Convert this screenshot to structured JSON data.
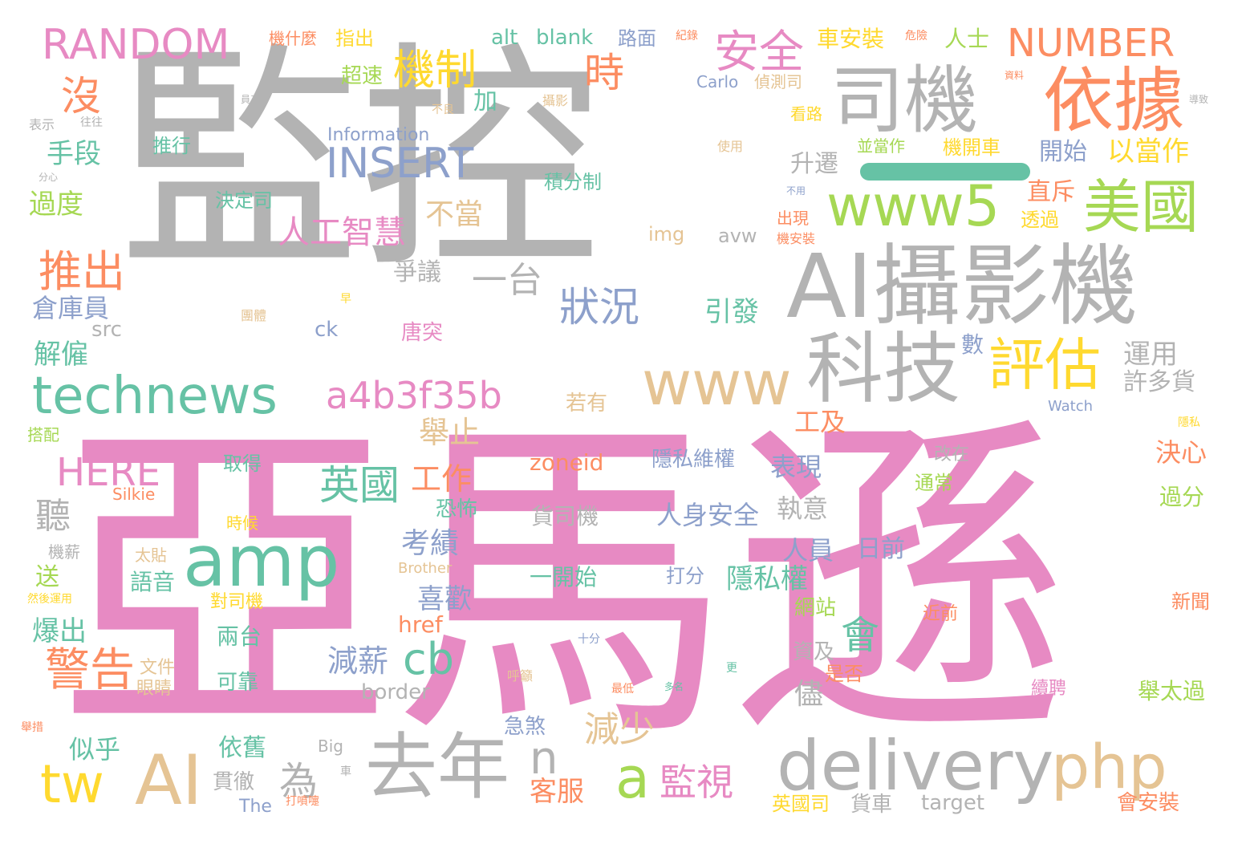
{
  "palette": {
    "gray": "#b3b3b3",
    "pink": "#e78ac3",
    "green": "#66c2a5",
    "orange": "#fc8d62",
    "blue": "#8da0cb",
    "lime": "#a6d854",
    "yellow": "#ffd92f",
    "tan": "#e5c494"
  },
  "words": [
    {
      "text": "監控",
      "color": "gray"
    },
    {
      "text": "亞馬遜",
      "color": "pink"
    },
    {
      "text": "司機",
      "color": "gray"
    },
    {
      "text": "依據",
      "color": "orange"
    },
    {
      "text": "AI攝影機",
      "color": "gray"
    },
    {
      "text": "美國",
      "color": "lime"
    },
    {
      "text": "www5",
      "color": "lime"
    },
    {
      "text": "科技",
      "color": "gray"
    },
    {
      "text": "評估",
      "color": "yellow"
    },
    {
      "text": "www",
      "color": "tan"
    },
    {
      "text": "technews",
      "color": "green"
    },
    {
      "text": "a4b3f35b",
      "color": "pink"
    },
    {
      "text": "amp",
      "color": "green"
    },
    {
      "text": "delivery",
      "color": "gray"
    },
    {
      "text": "去年",
      "color": "gray"
    },
    {
      "text": "AI",
      "color": "tan"
    },
    {
      "text": "php",
      "color": "tan"
    },
    {
      "text": "tw",
      "color": "yellow"
    },
    {
      "text": "RANDOM",
      "color": "pink"
    },
    {
      "text": "NUMBER",
      "color": "orange"
    },
    {
      "text": "INSERT",
      "color": "blue"
    },
    {
      "text": "HERE",
      "color": "pink"
    },
    {
      "text": "機制",
      "color": "yellow"
    },
    {
      "text": "安全",
      "color": "pink"
    },
    {
      "text": "時",
      "color": "orange"
    },
    {
      "text": "沒",
      "color": "orange"
    },
    {
      "text": "推出",
      "color": "orange"
    },
    {
      "text": "人工智慧",
      "color": "pink"
    },
    {
      "text": "狀況",
      "color": "blue"
    },
    {
      "text": "一台",
      "color": "gray"
    },
    {
      "text": "英國",
      "color": "green"
    },
    {
      "text": "警告",
      "color": "orange"
    },
    {
      "text": "cb",
      "color": "green"
    },
    {
      "text": "會",
      "color": "green"
    },
    {
      "text": "a",
      "color": "lime"
    },
    {
      "text": "監視",
      "color": "pink"
    },
    {
      "text": "n",
      "color": "gray"
    },
    {
      "text": "為",
      "color": "gray"
    },
    {
      "text": "減少",
      "color": "tan"
    },
    {
      "text": "以當作",
      "color": "yellow"
    },
    {
      "text": "手段",
      "color": "green"
    },
    {
      "text": "過度",
      "color": "lime"
    },
    {
      "text": "倉庫員",
      "color": "blue"
    },
    {
      "text": "解僱",
      "color": "green"
    },
    {
      "text": "聽",
      "color": "gray"
    },
    {
      "text": "工作",
      "color": "orange"
    },
    {
      "text": "舉止",
      "color": "tan"
    },
    {
      "text": "考績",
      "color": "blue"
    },
    {
      "text": "喜歡",
      "color": "blue"
    },
    {
      "text": "減薪",
      "color": "blue"
    },
    {
      "text": "表現",
      "color": "blue"
    },
    {
      "text": "人身安全",
      "color": "blue"
    },
    {
      "text": "人員",
      "color": "blue"
    },
    {
      "text": "日前",
      "color": "blue"
    },
    {
      "text": "隱私權",
      "color": "green"
    },
    {
      "text": "隱私維權",
      "color": "blue"
    },
    {
      "text": "貨司機",
      "color": "gray"
    },
    {
      "text": "一開始",
      "color": "green"
    },
    {
      "text": "zoneid",
      "color": "orange"
    },
    {
      "text": "車安裝",
      "color": "yellow"
    },
    {
      "text": "人士",
      "color": "lime"
    },
    {
      "text": "升遷",
      "color": "gray"
    },
    {
      "text": "直斥",
      "color": "orange"
    },
    {
      "text": "開始",
      "color": "blue"
    },
    {
      "text": "運用",
      "color": "gray"
    },
    {
      "text": "許多貨",
      "color": "gray"
    },
    {
      "text": "決心",
      "color": "orange"
    },
    {
      "text": "過分",
      "color": "lime"
    },
    {
      "text": "工及",
      "color": "orange"
    },
    {
      "text": "執意",
      "color": "gray"
    },
    {
      "text": "儘",
      "color": "gray"
    },
    {
      "text": "引發",
      "color": "green"
    },
    {
      "text": "不當",
      "color": "tan"
    },
    {
      "text": "爭議",
      "color": "gray"
    },
    {
      "text": "唐突",
      "color": "pink"
    },
    {
      "text": "若有",
      "color": "tan"
    },
    {
      "text": "恐怖",
      "color": "green"
    },
    {
      "text": "客服",
      "color": "orange"
    },
    {
      "text": "急煞",
      "color": "blue"
    },
    {
      "text": "似乎",
      "color": "green"
    },
    {
      "text": "依舊",
      "color": "green"
    },
    {
      "text": "貫徹",
      "color": "gray"
    },
    {
      "text": "爆出",
      "color": "green"
    },
    {
      "text": "送",
      "color": "lime"
    },
    {
      "text": "語音",
      "color": "green"
    },
    {
      "text": "兩台",
      "color": "green"
    },
    {
      "text": "可靠",
      "color": "green"
    },
    {
      "text": "網站",
      "color": "lime"
    },
    {
      "text": "資及",
      "color": "gray"
    },
    {
      "text": "是否",
      "color": "orange"
    },
    {
      "text": "舉太過",
      "color": "lime"
    },
    {
      "text": "會安裝",
      "color": "orange"
    },
    {
      "text": "英國司",
      "color": "yellow"
    },
    {
      "text": "貨車",
      "color": "gray"
    },
    {
      "text": "target",
      "color": "gray"
    },
    {
      "text": "border",
      "color": "gray"
    },
    {
      "text": "href",
      "color": "orange"
    },
    {
      "text": "src",
      "color": "gray"
    },
    {
      "text": "ck",
      "color": "blue"
    },
    {
      "text": "img",
      "color": "tan"
    },
    {
      "text": "avw",
      "color": "gray"
    },
    {
      "text": "alt",
      "color": "green"
    },
    {
      "text": "blank",
      "color": "green"
    },
    {
      "text": "路面",
      "color": "blue"
    },
    {
      "text": "指出",
      "color": "yellow"
    },
    {
      "text": "機什麼",
      "color": "orange"
    },
    {
      "text": "超速",
      "color": "lime"
    },
    {
      "text": "加",
      "color": "green"
    },
    {
      "text": "推行",
      "color": "green"
    },
    {
      "text": "決定司",
      "color": "green"
    },
    {
      "text": "積分制",
      "color": "green"
    },
    {
      "text": "機開車",
      "color": "yellow"
    },
    {
      "text": "並當作",
      "color": "lime"
    },
    {
      "text": "偵測司",
      "color": "tan"
    },
    {
      "text": "Carlo",
      "color": "blue"
    },
    {
      "text": "Information",
      "color": "blue"
    },
    {
      "text": "打分",
      "color": "blue"
    },
    {
      "text": "對司機",
      "color": "yellow"
    },
    {
      "text": "近前",
      "color": "orange"
    },
    {
      "text": "新聞",
      "color": "orange"
    },
    {
      "text": "續聘",
      "color": "pink"
    },
    {
      "text": "通常",
      "color": "lime"
    },
    {
      "text": "改在",
      "color": "gray"
    },
    {
      "text": "數",
      "color": "blue"
    },
    {
      "text": "取得",
      "color": "green"
    },
    {
      "text": "時候",
      "color": "yellow"
    },
    {
      "text": "文件",
      "color": "tan"
    },
    {
      "text": "眼睛",
      "color": "tan"
    },
    {
      "text": "太貼",
      "color": "tan"
    },
    {
      "text": "搭配",
      "color": "lime"
    },
    {
      "text": "機薪",
      "color": "gray"
    },
    {
      "text": "Silkie",
      "color": "orange"
    },
    {
      "text": "Brother",
      "color": "tan"
    },
    {
      "text": "Big",
      "color": "gray"
    },
    {
      "text": "The",
      "color": "blue"
    },
    {
      "text": "Watch",
      "color": "blue"
    },
    {
      "text": "十分",
      "color": "blue"
    },
    {
      "text": "呼籲",
      "color": "tan"
    },
    {
      "text": "最低",
      "color": "orange"
    },
    {
      "text": "更",
      "color": "green"
    },
    {
      "text": "多名",
      "color": "green"
    },
    {
      "text": "打噴嚏",
      "color": "orange"
    },
    {
      "text": "車",
      "color": "gray"
    },
    {
      "text": "使用",
      "color": "tan"
    },
    {
      "text": "團體",
      "color": "tan"
    },
    {
      "text": "看路",
      "color": "yellow"
    },
    {
      "text": "出現",
      "color": "orange"
    },
    {
      "text": "機安裝",
      "color": "orange"
    },
    {
      "text": "透過",
      "color": "yellow"
    },
    {
      "text": "危險",
      "color": "orange"
    },
    {
      "text": "紀錄",
      "color": "orange"
    },
    {
      "text": "資料",
      "color": "orange"
    },
    {
      "text": "導致",
      "color": "gray"
    },
    {
      "text": "表示",
      "color": "gray"
    },
    {
      "text": "往往",
      "color": "gray"
    },
    {
      "text": "員工",
      "color": "gray"
    },
    {
      "text": "不良",
      "color": "tan"
    },
    {
      "text": "攝影",
      "color": "tan"
    },
    {
      "text": "隱私",
      "color": "yellow"
    },
    {
      "text": "然後運用",
      "color": "yellow"
    },
    {
      "text": "舉措",
      "color": "orange"
    },
    {
      "text": "分心",
      "color": "gray"
    },
    {
      "text": "早",
      "color": "yellow"
    },
    {
      "text": "不用",
      "color": "blue"
    }
  ]
}
